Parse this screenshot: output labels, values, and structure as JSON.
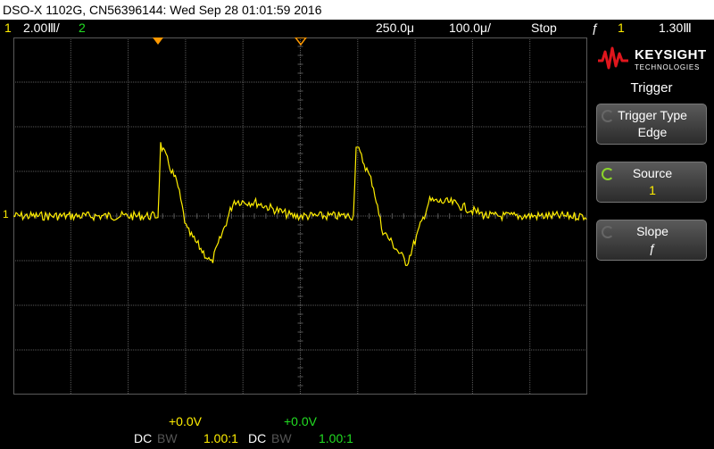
{
  "title": "DSO-X 1102G, CN56396144: Wed Sep 28 01:01:59 2016",
  "status": {
    "ch1_num": "1",
    "ch1_scale": "2.00Ⅲ/",
    "ch2_num": "2",
    "timebase": "250.0μ",
    "delay": "100.0μ/",
    "run_state": "Stop",
    "trig_icon": "ƒ",
    "trig_source": "1",
    "trig_level": "1.30Ⅲ"
  },
  "colors": {
    "ch1": "#ffee00",
    "ch2": "#22dd22",
    "grid": "#6e6e6e",
    "accent": "#8bd42b",
    "trigger_marker": "#ff9900"
  },
  "logo": {
    "name": "KEYSIGHT",
    "sub": "TECHNOLOGIES",
    "icon": "keysight-wave-logo"
  },
  "menu": {
    "title": "Trigger",
    "softkeys": [
      {
        "label": "Trigger Type",
        "value": "Edge"
      },
      {
        "label": "Source",
        "value": "1"
      },
      {
        "label": "Slope",
        "value": "ƒ"
      }
    ]
  },
  "screen_markers": {
    "trigger_level": "T",
    "ch1_ground": "1"
  },
  "bottom": {
    "ch1": {
      "offset": "+0.0V",
      "coupling": "DC",
      "bw": "BW",
      "probe": "1.00:1"
    },
    "ch2": {
      "offset": "+0.0V",
      "coupling": "DC",
      "bw": "BW",
      "probe": "1.00:1"
    }
  }
}
